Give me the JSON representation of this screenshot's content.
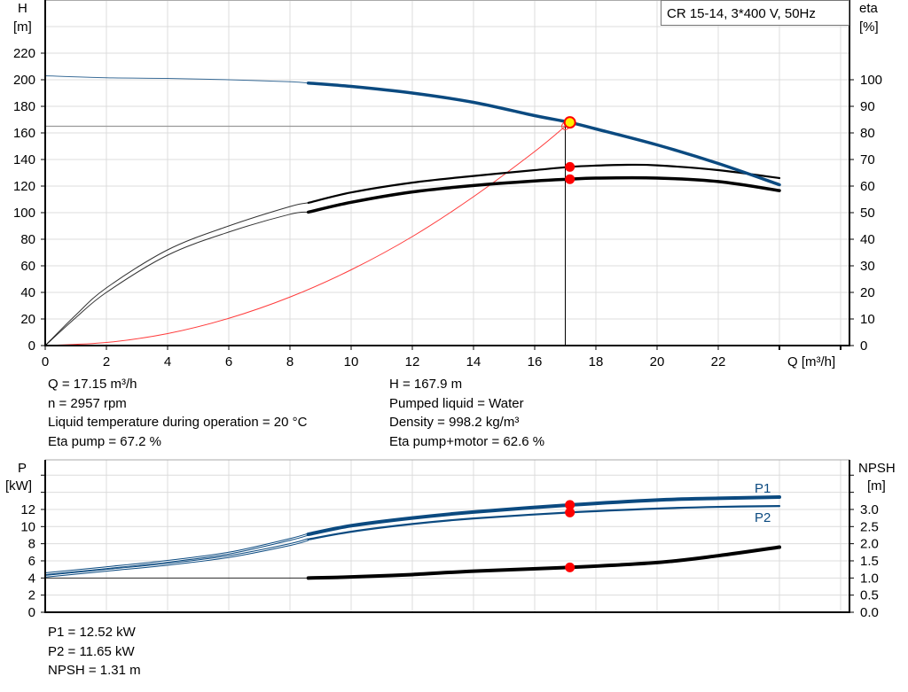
{
  "chart_data": [
    {
      "type": "line",
      "title": "CR 15-14, 3*400 V, 50Hz",
      "xlabel": "Q [m³/h]",
      "ylabel_left": [
        "H",
        "[m]"
      ],
      "ylabel_right": [
        "eta",
        "[%]"
      ],
      "xlim": [
        0,
        26
      ],
      "ylim_left": [
        0,
        260
      ],
      "ylim_right": [
        0,
        130
      ],
      "x_ticks": [
        0,
        2,
        4,
        6,
        8,
        10,
        12,
        14,
        16,
        18,
        20,
        22
      ],
      "y_ticks_left": [
        0,
        20,
        40,
        60,
        80,
        100,
        120,
        140,
        160,
        180,
        200,
        220
      ],
      "y_ticks_right": [
        0,
        10,
        20,
        30,
        40,
        50,
        60,
        70,
        80,
        90,
        100
      ],
      "grid": true,
      "colors": {
        "head": "#0b4a80",
        "efficiency": "#000000",
        "system": "#ff3b3b",
        "marker": "#ff0000",
        "duty_point": "#ffef00"
      },
      "series": [
        {
          "axis": "left",
          "color": "#0b4a80",
          "points": [
            [
              0,
              203
            ],
            [
              2,
              201.5
            ],
            [
              4,
              201
            ],
            [
              6,
              200
            ],
            [
              8,
              198.5
            ],
            [
              8.6,
              197.5
            ],
            [
              10,
              195
            ],
            [
              12,
              190
            ],
            [
              14,
              183
            ],
            [
              16,
              173
            ],
            [
              17.15,
              167.9
            ],
            [
              18,
              163
            ],
            [
              20,
              151
            ],
            [
              22,
              137
            ],
            [
              24,
              121
            ]
          ]
        },
        {
          "axis": "right",
          "color": "#000000",
          "points": [
            [
              0,
              0
            ],
            [
              1,
              11.5
            ],
            [
              2,
              21.7
            ],
            [
              4,
              36
            ],
            [
              6,
              45
            ],
            [
              8,
              52.3
            ],
            [
              8.6,
              53.7
            ],
            [
              10,
              57.6
            ],
            [
              12,
              61.3
            ],
            [
              14,
              63.8
            ],
            [
              16,
              66
            ],
            [
              17.15,
              67.2
            ],
            [
              18,
              67.7
            ],
            [
              19,
              68
            ],
            [
              20,
              67.8
            ],
            [
              22,
              66
            ],
            [
              24,
              63
            ]
          ]
        },
        {
          "axis": "right",
          "color": "#000000",
          "points": [
            [
              0,
              0
            ],
            [
              1,
              10.5
            ],
            [
              2,
              20
            ],
            [
              4,
              34
            ],
            [
              6,
              42.7
            ],
            [
              8,
              49.4
            ],
            [
              8.6,
              50.2
            ],
            [
              10,
              53.9
            ],
            [
              12,
              57.8
            ],
            [
              14,
              60.2
            ],
            [
              16,
              61.9
            ],
            [
              17.15,
              62.6
            ],
            [
              18,
              63
            ],
            [
              20,
              63
            ],
            [
              22,
              61.7
            ],
            [
              24,
              58.3
            ]
          ]
        },
        {
          "axis": "left",
          "color": "#ff3b3b",
          "points": [
            [
              0,
              0
            ],
            [
              2,
              2.3
            ],
            [
              4,
              9
            ],
            [
              6,
              20.5
            ],
            [
              8,
              36.5
            ],
            [
              10,
              57
            ],
            [
              12,
              82
            ],
            [
              14,
              112
            ],
            [
              16,
              146
            ],
            [
              17,
              165
            ]
          ]
        }
      ],
      "operating_point": {
        "Q": 17.15,
        "H": 167.9,
        "eta_pump": 67.2,
        "eta_pump_motor": 62.6
      },
      "reference_lines": {
        "H": 165,
        "Q": 17
      }
    },
    {
      "type": "line",
      "xlabel": "",
      "ylabel_left": [
        "P",
        "[kW]"
      ],
      "ylabel_right": [
        "NPSH",
        "[m]"
      ],
      "xlim": [
        0,
        26
      ],
      "ylim_left": [
        0,
        17.8
      ],
      "ylim_right": [
        0,
        4.45
      ],
      "y_ticks_left": [
        0,
        2,
        4,
        6,
        8,
        10,
        12
      ],
      "y_ticks_right": [
        "0.0",
        "0.5",
        "1.0",
        "1.5",
        "2.0",
        "2.5",
        "3.0"
      ],
      "grid": true,
      "series": [
        {
          "name": "P1",
          "axis": "left",
          "color": "#0b4a80",
          "points": [
            [
              0,
              4.5
            ],
            [
              2,
              5.2
            ],
            [
              4,
              5.95
            ],
            [
              6,
              6.9
            ],
            [
              8,
              8.5
            ],
            [
              8.6,
              9.1
            ],
            [
              10,
              10.1
            ],
            [
              12,
              11
            ],
            [
              14,
              11.7
            ],
            [
              17.15,
              12.52
            ],
            [
              20,
              13.1
            ],
            [
              22,
              13.3
            ],
            [
              24,
              13.45
            ]
          ]
        },
        {
          "name": "P2",
          "axis": "left",
          "color": "#0b4a80",
          "points": [
            [
              0,
              4.2
            ],
            [
              2,
              4.9
            ],
            [
              4,
              5.6
            ],
            [
              6,
              6.5
            ],
            [
              8,
              7.9
            ],
            [
              8.6,
              8.5
            ],
            [
              10,
              9.4
            ],
            [
              12,
              10.3
            ],
            [
              14,
              10.95
            ],
            [
              17.15,
              11.65
            ],
            [
              20,
              12.1
            ],
            [
              22,
              12.3
            ],
            [
              24,
              12.4
            ]
          ]
        },
        {
          "axis": "right",
          "color": "#000000",
          "points": [
            [
              0,
              1.0
            ],
            [
              4,
              1.0
            ],
            [
              8.6,
              1.0
            ],
            [
              10,
              1.03
            ],
            [
              12,
              1.1
            ],
            [
              14,
              1.2
            ],
            [
              17.15,
              1.31
            ],
            [
              20,
              1.45
            ],
            [
              22,
              1.65
            ],
            [
              24,
              1.9
            ]
          ]
        }
      ],
      "operating_point": {
        "Q": 17.15,
        "P1": 12.52,
        "P2": 11.65,
        "NPSH": 1.31
      }
    }
  ],
  "info_top_left": [
    "Q = 17.15 m³/h",
    "n = 2957 rpm",
    "Liquid temperature during operation = 20 °C",
    "Eta pump = 67.2 %"
  ],
  "info_top_right": [
    "H = 167.9 m",
    "Pumped liquid = Water",
    "Density = 998.2 kg/m³",
    "Eta pump+motor = 62.6 %"
  ],
  "info_bottom": [
    "P1 = 12.52 kW",
    "P2 = 11.65 kW",
    "NPSH = 1.31 m"
  ]
}
